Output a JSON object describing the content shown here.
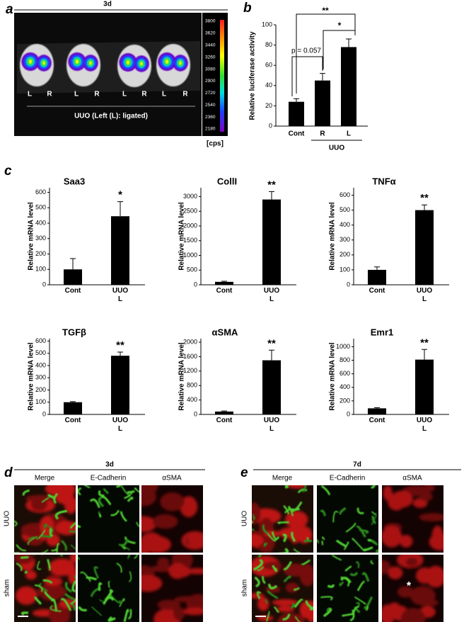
{
  "panel_a": {
    "label": "a",
    "timepoint": "3d",
    "kidney_labels": [
      "L",
      "R",
      "L",
      "R",
      "L",
      "R",
      "L",
      "R"
    ],
    "caption": "UUO (Left (L): ligated)",
    "colorbar": {
      "ticks": [
        3800,
        3620,
        3440,
        3260,
        3080,
        2900,
        2720,
        2540,
        2360,
        2180
      ],
      "unit": "[cps]"
    }
  },
  "panel_c": {
    "label": "c"
  },
  "chart_data": [
    {
      "type": "bar",
      "panel_label": "b",
      "ylabel": "Relative luciferase activity",
      "categories": [
        "Cont",
        "R",
        "L"
      ],
      "group_label": "UUO",
      "values": [
        24,
        45,
        78
      ],
      "errors": [
        3,
        7,
        8
      ],
      "color": "#000000",
      "ylim": [
        0,
        100
      ],
      "yticks": [
        0,
        20,
        40,
        60,
        80,
        100
      ],
      "annotations": [
        "**",
        "*",
        "p = 0.057"
      ]
    },
    {
      "type": "bar",
      "title": "Saa3",
      "ylabel": "Relative mRNA level",
      "categories": [
        "Cont",
        "UUO L"
      ],
      "values": [
        100,
        445
      ],
      "errors": [
        70,
        95
      ],
      "color": "#000000",
      "ylim": [
        0,
        630
      ],
      "yticks": [
        0,
        100,
        200,
        300,
        400,
        500,
        600
      ],
      "annotation": "*"
    },
    {
      "type": "bar",
      "title": "CollI",
      "ylabel": "Relative mRNA level",
      "categories": [
        "Cont",
        "UUO L"
      ],
      "values": [
        100,
        2900
      ],
      "errors": [
        20,
        270
      ],
      "color": "#000000",
      "ylim": [
        0,
        3300
      ],
      "yticks": [
        0,
        500,
        1000,
        1500,
        2000,
        2500,
        3000
      ],
      "annotation": "**"
    },
    {
      "type": "bar",
      "title": "TNFα",
      "ylabel": "Relative mRNA level",
      "categories": [
        "Cont",
        "UUO L"
      ],
      "values": [
        100,
        500
      ],
      "errors": [
        20,
        35
      ],
      "color": "#000000",
      "ylim": [
        0,
        650
      ],
      "yticks": [
        0,
        100,
        200,
        300,
        400,
        500,
        600
      ],
      "annotation": "**"
    },
    {
      "type": "bar",
      "title": "TGFβ",
      "ylabel": "Relative mRNA level",
      "categories": [
        "Cont",
        "UUO L"
      ],
      "values": [
        100,
        480
      ],
      "errors": [
        5,
        30
      ],
      "color": "#000000",
      "ylim": [
        0,
        620
      ],
      "yticks": [
        0,
        100,
        200,
        300,
        400,
        500,
        600
      ],
      "annotation": "**"
    },
    {
      "type": "bar",
      "title": "αSMA",
      "ylabel": "Relative mRNA level",
      "categories": [
        "Cont",
        "UUO L"
      ],
      "values": [
        80,
        1500
      ],
      "errors": [
        15,
        280
      ],
      "color": "#000000",
      "ylim": [
        0,
        2100
      ],
      "yticks": [
        0,
        400,
        800,
        1200,
        1600,
        2000
      ],
      "annotation": "**"
    },
    {
      "type": "bar",
      "title": "Emr1",
      "ylabel": "Relative mRNA level",
      "categories": [
        "Cont",
        "UUO L"
      ],
      "values": [
        90,
        810
      ],
      "errors": [
        10,
        150
      ],
      "color": "#000000",
      "ylim": [
        0,
        1120
      ],
      "yticks": [
        0,
        200,
        400,
        600,
        800,
        1000
      ],
      "annotation": "**"
    }
  ],
  "panel_d": {
    "label": "d",
    "timepoint": "3d",
    "columns": [
      "Merge",
      "E-Cadherin",
      "αSMA"
    ],
    "rows": [
      "UUO",
      "sham"
    ]
  },
  "panel_e": {
    "label": "e",
    "timepoint": "7d",
    "columns": [
      "Merge",
      "E-Cadherin",
      "αSMA"
    ],
    "rows": [
      "UUO",
      "sham"
    ],
    "annotation": "*"
  }
}
